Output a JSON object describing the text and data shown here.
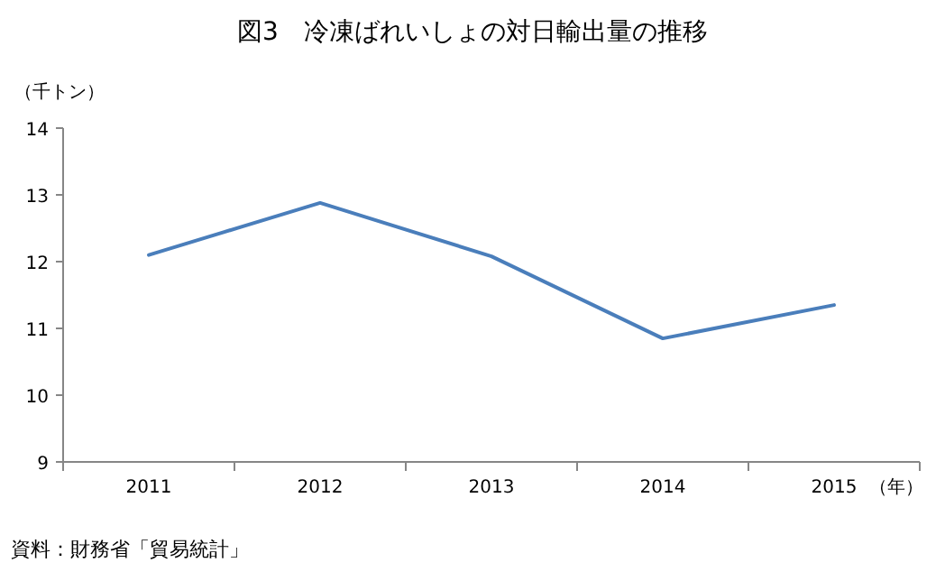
{
  "chart_data": {
    "type": "line",
    "title": "図3　冷凍ばれいしょの対日輸出量の推移",
    "xlabel": "（年）",
    "ylabel": "（千トン）",
    "annotations": [
      "資料：財務省「貿易統計」"
    ],
    "categories": [
      "2011",
      "2012",
      "2013",
      "2014",
      "2015"
    ],
    "series": [
      {
        "color": "#4a7ebb",
        "values": [
          12.1,
          12.88,
          12.08,
          10.85,
          11.35
        ]
      }
    ],
    "ylim": [
      9,
      14
    ],
    "yticks": [
      9,
      10,
      11,
      12,
      13,
      14
    ],
    "grid": false,
    "marker": "none",
    "line_style": "solid"
  }
}
